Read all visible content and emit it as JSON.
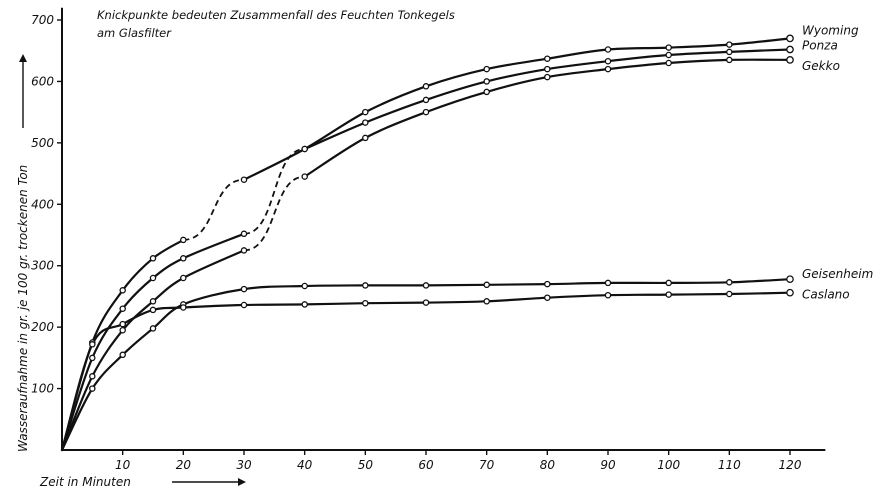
{
  "chart_data": {
    "type": "line",
    "annotation": [
      "Knickpunkte bedeuten Zusammenfall des Feuchten Tonkegels",
      "am Glasfilter"
    ],
    "xlabel": "Zeit in Minuten",
    "ylabel": "Wasseraufnahme in gr. je 100 gr. trockenen Ton",
    "xlim": [
      0,
      125
    ],
    "ylim": [
      0,
      720
    ],
    "x_ticks": [
      10,
      20,
      30,
      40,
      50,
      60,
      70,
      80,
      90,
      100,
      110,
      120
    ],
    "y_ticks": [
      100,
      200,
      300,
      400,
      500,
      600,
      700
    ],
    "grid": false,
    "series": [
      {
        "name": "Wyoming",
        "x": [
          0,
          5,
          10,
          15,
          20,
          30,
          40,
          50,
          60,
          70,
          80,
          90,
          100,
          110,
          120
        ],
        "y": [
          0,
          175,
          260,
          312,
          342,
          440,
          490,
          550,
          592,
          620,
          637,
          652,
          655,
          660,
          670
        ],
        "dashed_segments": [
          [
            20,
            30
          ]
        ]
      },
      {
        "name": "Ponza",
        "x": [
          0,
          5,
          10,
          15,
          20,
          30,
          40,
          50,
          60,
          70,
          80,
          90,
          100,
          110,
          120
        ],
        "y": [
          0,
          150,
          230,
          280,
          312,
          352,
          490,
          533,
          570,
          600,
          620,
          633,
          643,
          648,
          652
        ],
        "dashed_segments": [
          [
            30,
            40
          ]
        ]
      },
      {
        "name": "Gekko",
        "x": [
          0,
          5,
          10,
          15,
          20,
          30,
          40,
          50,
          60,
          70,
          80,
          90,
          100,
          110,
          120
        ],
        "y": [
          0,
          120,
          195,
          242,
          280,
          325,
          445,
          508,
          550,
          583,
          607,
          620,
          630,
          635,
          635
        ],
        "dashed_segments": [
          [
            30,
            40
          ]
        ]
      },
      {
        "name": "Geisenheim",
        "x": [
          0,
          5,
          10,
          15,
          20,
          30,
          40,
          50,
          60,
          70,
          80,
          90,
          100,
          110,
          120
        ],
        "y": [
          0,
          100,
          155,
          198,
          237,
          262,
          267,
          268,
          268,
          269,
          270,
          272,
          272,
          273,
          278
        ],
        "dashed_segments": []
      },
      {
        "name": "Caslano",
        "x": [
          0,
          5,
          10,
          15,
          20,
          30,
          40,
          50,
          60,
          70,
          80,
          90,
          100,
          110,
          120
        ],
        "y": [
          0,
          172,
          205,
          228,
          232,
          236,
          237,
          239,
          240,
          242,
          248,
          252,
          253,
          254,
          256
        ],
        "dashed_segments": []
      }
    ]
  }
}
